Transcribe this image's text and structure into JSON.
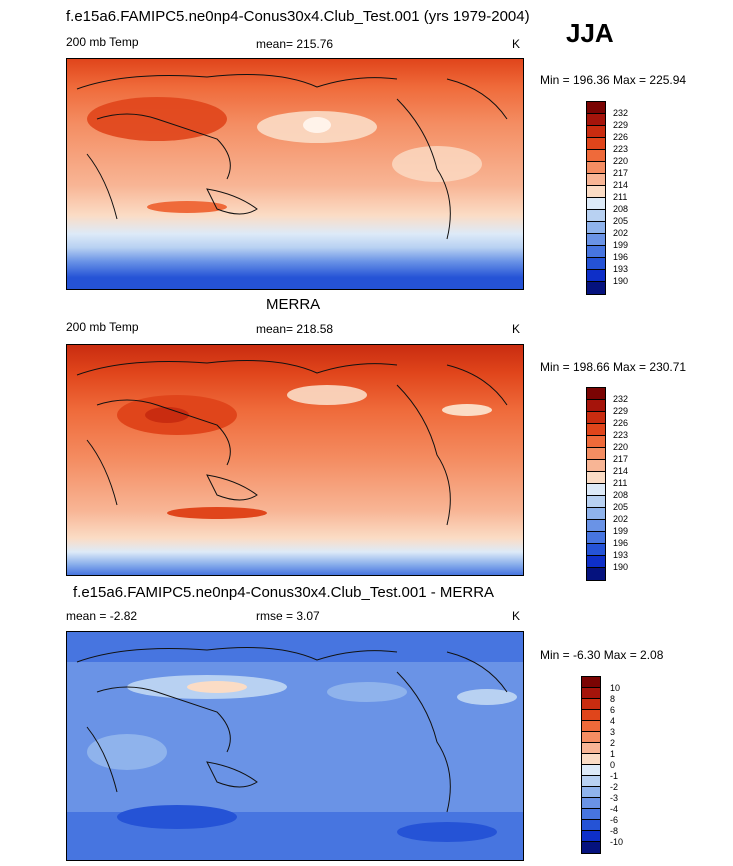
{
  "season": "JJA",
  "panels": [
    {
      "title": "f.e15a6.FAMIPC5.ne0np4-Conus30x4.Club_Test.001 (yrs 1979-2004)",
      "left_label": "200 mb Temp",
      "center_label": "mean= 215.76",
      "units": "K",
      "minmax": "Min = 196.36 Max = 225.94",
      "cbar_labels": [
        "232",
        "229",
        "226",
        "223",
        "220",
        "217",
        "214",
        "211",
        "208",
        "205",
        "202",
        "199",
        "196",
        "193",
        "190"
      ]
    },
    {
      "title": "MERRA",
      "left_label": "200 mb Temp",
      "center_label": "mean= 218.58",
      "units": "K",
      "minmax": "Min = 198.66 Max = 230.71",
      "cbar_labels": [
        "232",
        "229",
        "226",
        "223",
        "220",
        "217",
        "214",
        "211",
        "208",
        "205",
        "202",
        "199",
        "196",
        "193",
        "190"
      ]
    },
    {
      "title": "f.e15a6.FAMIPC5.ne0np4-Conus30x4.Club_Test.001 - MERRA",
      "left_label": "mean =  -2.82",
      "center_label": "rmse =   3.07",
      "units": "K",
      "minmax": "Min =  -6.30 Max =   2.08",
      "cbar_labels": [
        "10",
        "8",
        "6",
        "4",
        "3",
        "2",
        "1",
        "0",
        "-1",
        "-2",
        "-3",
        "-4",
        "-6",
        "-8",
        "-10"
      ]
    }
  ],
  "colors": {
    "temp_scale": [
      "#7a0403",
      "#a5140b",
      "#c92c10",
      "#e0451b",
      "#ef6a3a",
      "#f48d62",
      "#f8b595",
      "#fbdcc5",
      "#ddeaf8",
      "#b8d1f2",
      "#8fb3ec",
      "#6a93e6",
      "#4775e0",
      "#2553d6",
      "#0e2fc8",
      "#05127e"
    ],
    "diff_scale": [
      "#7a0403",
      "#a5140b",
      "#c92c10",
      "#e0451b",
      "#ef6a3a",
      "#f48d62",
      "#f8b595",
      "#fbdcc5",
      "#ddeaf8",
      "#b8d1f2",
      "#8fb3ec",
      "#6a93e6",
      "#4775e0",
      "#2553d6",
      "#0e2fc8",
      "#05127e"
    ]
  }
}
